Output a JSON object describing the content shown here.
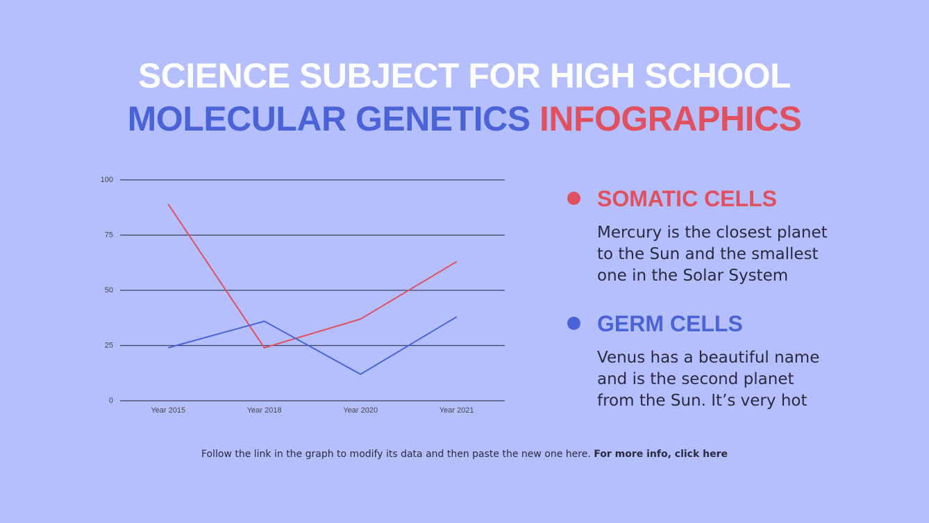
{
  "title": {
    "line1": "SCIENCE SUBJECT FOR HIGH SCHOOL",
    "line2_part1": "MOLECULAR GENETICS",
    "line2_part2": "INFOGRAPHICS"
  },
  "chart_data": {
    "type": "line",
    "categories": [
      "Year 2015",
      "Year 2018",
      "Year 2020",
      "Year 2021"
    ],
    "series": [
      {
        "name": "SOMATIC CELLS",
        "color": "#e0505e",
        "values": [
          89,
          24,
          37,
          63
        ]
      },
      {
        "name": "GERM CELLS",
        "color": "#4a64d8",
        "values": [
          24,
          36,
          12,
          38
        ]
      }
    ],
    "ylim": [
      0,
      100
    ],
    "yticks": [
      0,
      25,
      50,
      75,
      100
    ],
    "grid": true
  },
  "descriptions": [
    [
      "Mercury is the closest planet",
      "to the Sun and the smallest",
      "one in the Solar System"
    ],
    [
      "Venus has a beautiful name",
      "and is the second planet",
      "from the Sun. It’s very hot"
    ]
  ],
  "footer": {
    "text": "Follow the link in the graph to modify its data and then paste the new one here.",
    "link": "For more info, click here"
  }
}
